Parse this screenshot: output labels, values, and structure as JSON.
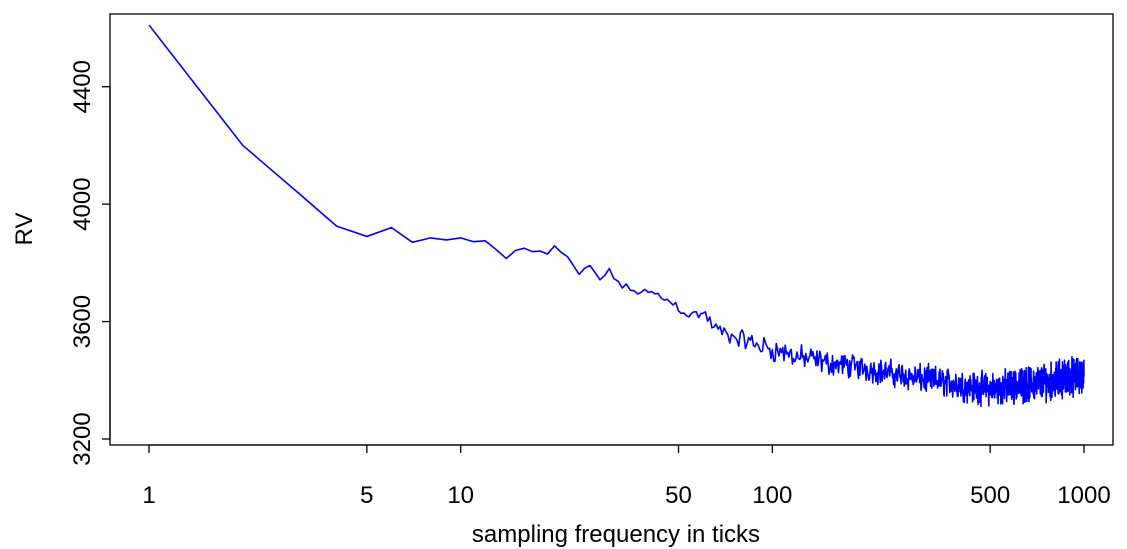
{
  "chart_data": {
    "type": "line",
    "title": "",
    "xlabel": "sampling frequency in ticks",
    "ylabel": "RV",
    "x_scale": "log",
    "xlim": [
      1,
      1000
    ],
    "ylim": [
      3200,
      4600
    ],
    "x_ticks": [
      1,
      5,
      10,
      50,
      100,
      500,
      1000
    ],
    "x_tick_labels": [
      "1",
      "5",
      "10",
      "50",
      "100",
      "500",
      "1000"
    ],
    "y_ticks": [
      3200,
      3600,
      4000,
      4400
    ],
    "y_tick_labels": [
      "3200",
      "3600",
      "4000",
      "4400"
    ],
    "grid": false,
    "legend": "none",
    "series": [
      {
        "color": "#0000ff",
        "x": [
          1,
          2,
          3,
          4,
          5,
          6,
          7,
          8,
          9,
          10,
          11,
          12,
          13,
          14,
          15,
          16,
          17,
          18,
          19,
          20,
          22,
          24,
          26,
          28,
          30,
          33,
          36,
          40,
          45,
          50,
          55,
          60,
          65,
          70,
          75,
          80,
          90,
          100,
          120,
          150,
          200,
          250,
          300,
          350,
          400,
          450,
          500,
          600,
          700,
          800,
          900,
          1000
        ],
        "y": [
          4610,
          4200,
          4040,
          3925,
          3890,
          3920,
          3870,
          3885,
          3878,
          3885,
          3872,
          3875,
          3845,
          3815,
          3842,
          3850,
          3838,
          3840,
          3830,
          3858,
          3815,
          3760,
          3790,
          3745,
          3770,
          3720,
          3705,
          3700,
          3680,
          3650,
          3620,
          3630,
          3580,
          3560,
          3545,
          3540,
          3520,
          3505,
          3480,
          3460,
          3440,
          3420,
          3405,
          3395,
          3385,
          3375,
          3370,
          3380,
          3390,
          3400,
          3410,
          3420
        ],
        "noise_amplitude": [
          0,
          0,
          0,
          0,
          0,
          0,
          0,
          0,
          0,
          0,
          0,
          0,
          0,
          0,
          0,
          0,
          0,
          0,
          0,
          0,
          10,
          12,
          12,
          14,
          15,
          16,
          18,
          20,
          22,
          25,
          28,
          30,
          32,
          34,
          36,
          40,
          45,
          50,
          50,
          50,
          52,
          55,
          58,
          60,
          62,
          65,
          68,
          70,
          72,
          75,
          78,
          80
        ]
      }
    ]
  }
}
